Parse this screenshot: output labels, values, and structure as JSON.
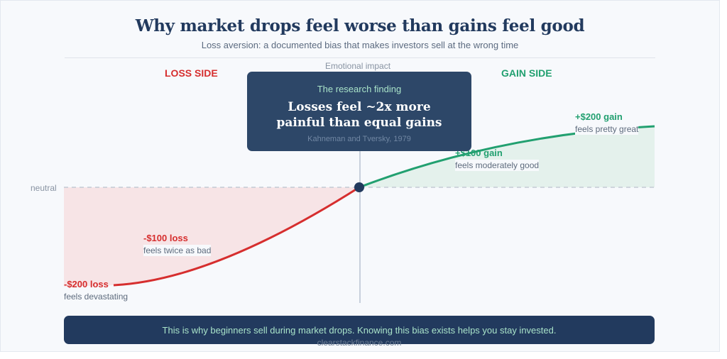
{
  "header": {
    "title": "Why market drops feel worse than gains feel good",
    "subtitle": "Loss aversion: a documented bias that makes investors sell at the wrong time"
  },
  "diagram": {
    "loss_side_label": "LOSS SIDE",
    "gain_side_label": "GAIN SIDE",
    "axis_label": "Emotional impact",
    "neutral_label": "neutral",
    "colors": {
      "loss": "#d62e2e",
      "gain": "#22a070",
      "navy": "#223a5e",
      "mint": "#a9e3c9"
    },
    "annotations": {
      "loss_100": {
        "value": "-$100 loss",
        "note": "feels twice as bad"
      },
      "loss_200": {
        "value": "-$200 loss",
        "note": "feels devastating"
      },
      "gain_100": {
        "value": "+$100 gain",
        "note": "feels moderately good"
      },
      "gain_200": {
        "value": "+$200 gain",
        "note": "feels pretty great"
      }
    }
  },
  "finding": {
    "label": "The research finding",
    "headline_line1": "Losses feel ~2x more",
    "headline_line2": "painful than equal gains",
    "citation": "Kahneman and Tversky, 1979"
  },
  "footer": {
    "message": "This is why beginners sell during market drops. Knowing this bias exists helps you stay invested.",
    "site": "clearstackfinance.com"
  }
}
